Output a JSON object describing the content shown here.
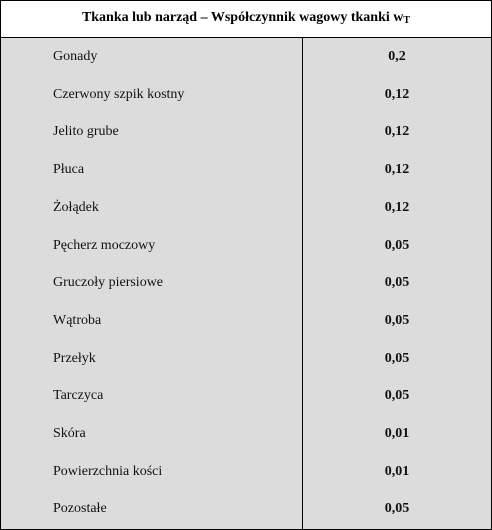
{
  "table": {
    "header": {
      "title": "Tkanka lub narząd – Współczynnik wagowy tkanki w",
      "subscript": "T"
    },
    "rows": [
      [
        "Gonady",
        "0,2"
      ],
      [
        "Czerwony szpik kostny",
        "0,12"
      ],
      [
        "Jelito grube",
        "0,12"
      ],
      [
        "Płuca",
        "0,12"
      ],
      [
        "Żołądek",
        "0,12"
      ],
      [
        "Pęcherz moczowy",
        "0,05"
      ],
      [
        "Gruczoły piersiowe",
        "0,05"
      ],
      [
        "Wątroba",
        "0,05"
      ],
      [
        "Przełyk",
        "0,05"
      ],
      [
        "Tarczyca",
        "0,05"
      ],
      [
        "Skóra",
        "0,01"
      ],
      [
        "Powierzchnia kości",
        "0,01"
      ],
      [
        "Pozostałe",
        "0,05"
      ]
    ]
  }
}
